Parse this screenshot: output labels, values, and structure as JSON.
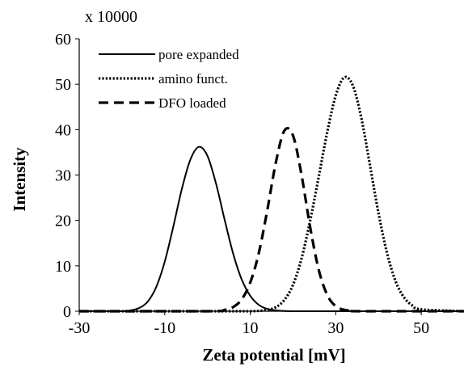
{
  "chart_data": {
    "type": "line",
    "title": "",
    "xlabel": "Zeta potential [mV]",
    "ylabel": "Intensity",
    "y_scale_note": "x 10000",
    "xlim": [
      -30,
      60
    ],
    "ylim": [
      0,
      60
    ],
    "x_ticks": [
      -30,
      -10,
      10,
      30,
      50
    ],
    "y_ticks": [
      0,
      10,
      20,
      30,
      40,
      50,
      60
    ],
    "grid": false,
    "legend_position": "top-left",
    "series": [
      {
        "name": "pore expanded",
        "style": "solid",
        "x": [
          -30,
          -20,
          -18,
          -16,
          -14,
          -12,
          -10,
          -8,
          -6,
          -4,
          -2,
          0,
          2,
          4,
          6,
          8,
          10,
          12,
          14,
          16,
          20,
          30,
          60
        ],
        "y": [
          0,
          0,
          0.2,
          0.7,
          2.1,
          5.3,
          10.9,
          18.6,
          26.9,
          33.4,
          36.2,
          34.2,
          28.1,
          20.2,
          12.7,
          7.0,
          3.4,
          1.4,
          0.5,
          0.2,
          0,
          0,
          0
        ]
      },
      {
        "name": "amino funct.",
        "style": "dotted",
        "x": [
          -30,
          0,
          10,
          14,
          16,
          18,
          20,
          22,
          24,
          26,
          28,
          30,
          32,
          34,
          36,
          38,
          40,
          42,
          44,
          46,
          48,
          50,
          60
        ],
        "y": [
          0,
          0,
          0,
          0.3,
          0.9,
          2.5,
          5.8,
          11.6,
          19.9,
          29.5,
          39.4,
          47.5,
          51.5,
          49.7,
          42.5,
          32.2,
          21.6,
          12.8,
          6.6,
          3.0,
          1.2,
          0.4,
          0
        ]
      },
      {
        "name": "DFO loaded",
        "style": "dashed",
        "x": [
          -30,
          0,
          4,
          6,
          8,
          10,
          12,
          14,
          16,
          18,
          20,
          22,
          24,
          26,
          28,
          30,
          32,
          34,
          36,
          60
        ],
        "y": [
          0,
          0,
          0.3,
          0.9,
          2.6,
          6.3,
          12.8,
          22.3,
          32.8,
          39.8,
          38.7,
          30.0,
          18.6,
          9.2,
          3.6,
          1.1,
          0.3,
          0.1,
          0,
          0
        ]
      }
    ]
  }
}
